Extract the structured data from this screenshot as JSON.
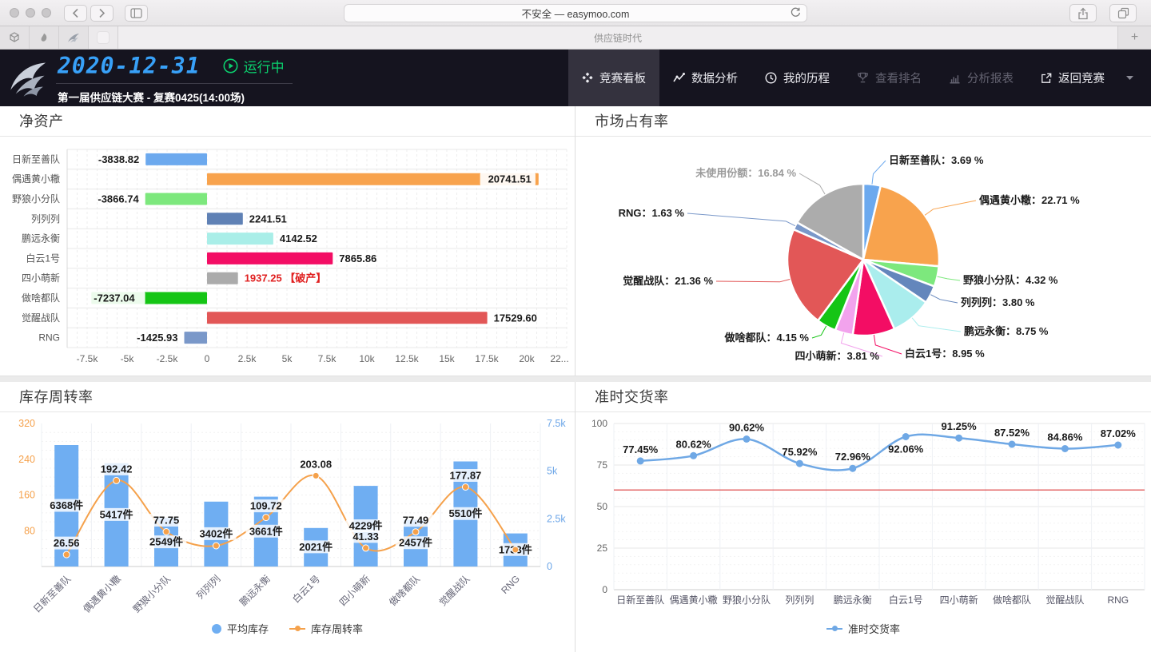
{
  "browser": {
    "url": "不安全 — easymoo.com",
    "tab_title": "供应链时代",
    "new_tab_label": "+"
  },
  "header": {
    "date": "2020-12-31",
    "status_label": "运行中",
    "match_title": "第一届供应链大赛 - 复赛0425(14:00场)",
    "nav_items": [
      {
        "label": "竞赛看板",
        "icon": "kanban-icon",
        "state": "active"
      },
      {
        "label": "数据分析",
        "icon": "analysis-icon",
        "state": "normal"
      },
      {
        "label": "我的历程",
        "icon": "history-icon",
        "state": "normal"
      },
      {
        "label": "查看排名",
        "icon": "ranking-icon",
        "state": "disabled"
      },
      {
        "label": "分析报表",
        "icon": "report-icon",
        "state": "disabled"
      },
      {
        "label": "返回竞赛",
        "icon": "external-link-icon",
        "state": "normal"
      }
    ]
  },
  "panels": {
    "net_assets": "净资产",
    "market_share": "市场占有率",
    "inventory_turnover": "库存周转率",
    "on_time_delivery": "准时交货率"
  },
  "chart_data": [
    {
      "id": "net_assets",
      "type": "bar",
      "title": "净资产",
      "orientation": "horizontal",
      "categories": [
        "日新至善队",
        "偶遇黄小糤",
        "野狼小分队",
        "列列列",
        "鹏远永衡",
        "白云1号",
        "四小萌新",
        "做啥都队",
        "觉醒战队",
        "RNG"
      ],
      "values": [
        -3838.82,
        20741.51,
        -3866.74,
        2241.51,
        4142.52,
        7865.86,
        1937.25,
        -7237.04,
        17529.6,
        -1425.93
      ],
      "value_labels": [
        "-3838.82",
        "20741.51",
        "-3866.74",
        "2241.51",
        "4142.52",
        "7865.86",
        "1937.25 【破产】",
        "-7237.04",
        "17529.60",
        "-1425.93"
      ],
      "bankrupt_index": 6,
      "bar_colors": [
        "#6CA9EE",
        "#F8A34D",
        "#7DE87D",
        "#5F81B5",
        "#A9EEE8",
        "#F30D64",
        "#ABABAB",
        "#15C515",
        "#E25757",
        "#7A98C9"
      ],
      "xlim": [
        -8750,
        22500
      ],
      "x_tick_values": [
        -7500,
        -5000,
        -2500,
        0,
        2500,
        5000,
        7500,
        10000,
        12500,
        15000,
        17500,
        20000,
        22500
      ],
      "x_tick_labels": [
        "-7.5k",
        "-5k",
        "-2.5k",
        "0",
        "2.5k",
        "5k",
        "7.5k",
        "10k",
        "12.5k",
        "15k",
        "17.5k",
        "20k",
        "22..."
      ]
    },
    {
      "id": "market_share",
      "type": "pie",
      "title": "市场占有率",
      "slices": [
        {
          "name": "日新至善队",
          "value": 3.69,
          "value_label": "3.69 %",
          "color": "#6CA9EE"
        },
        {
          "name": "偶遇黄小糤",
          "value": 22.71,
          "value_label": "22.71 %",
          "color": "#F8A34D"
        },
        {
          "name": "野狼小分队",
          "value": 4.32,
          "value_label": "4.32 %",
          "color": "#7DE87D"
        },
        {
          "name": "列列列",
          "value": 3.8,
          "value_label": "3.80 %",
          "color": "#6486BC"
        },
        {
          "name": "鹏远永衡",
          "value": 8.75,
          "value_label": "8.75 %",
          "color": "#AAEDED"
        },
        {
          "name": "白云1号",
          "value": 8.95,
          "value_label": "8.95 %",
          "color": "#F30D64"
        },
        {
          "name": "四小萌新",
          "value": 3.81,
          "value_label": "3.81 %",
          "color": "#F2A3ED"
        },
        {
          "name": "做啥都队",
          "value": 4.15,
          "value_label": "4.15 %",
          "color": "#15C515"
        },
        {
          "name": "觉醒战队",
          "value": 21.36,
          "value_label": "21.36 %",
          "color": "#E25757"
        },
        {
          "name": "RNG",
          "value": 1.63,
          "value_label": "1.63 %",
          "color": "#7A98C9"
        },
        {
          "name": "未使用份额",
          "value": 16.84,
          "value_label": "16.84 %",
          "color": "#ACACAC",
          "label_color": "#9b9b9b"
        }
      ],
      "start_angle_deg": 0,
      "direction": "clockwise"
    },
    {
      "id": "inventory_turnover",
      "type": "bar+line",
      "title": "库存周转率",
      "categories": [
        "日新至善队",
        "偶遇黄小糤",
        "野狼小分队",
        "列列列",
        "鹏远永衡",
        "白云1号",
        "四小萌新",
        "做啥都队",
        "觉醒战队",
        "RNG"
      ],
      "series": [
        {
          "name": "平均库存",
          "type": "bar",
          "axis": "right",
          "unit": "件",
          "color": "#6FAEF2",
          "values": [
            6368,
            5417,
            2549,
            3402,
            3661,
            2021,
            4229,
            2457,
            5510,
            1733
          ]
        },
        {
          "name": "库存周转率",
          "type": "line",
          "axis": "left",
          "color": "#F5A14B",
          "values": [
            26.56,
            192.42,
            77.75,
            46.5,
            109.72,
            203.08,
            41.33,
            77.49,
            177.87,
            37.5
          ],
          "point_labels": [
            "26.56",
            "192.42",
            "77.75",
            "",
            "109.72",
            "203.08",
            "41.33",
            "77.49",
            "177.87",
            ""
          ]
        }
      ],
      "left_axis": {
        "max": 320,
        "ticks": [
          "320",
          "240",
          "160",
          "80"
        ],
        "color": "#F5A14B"
      },
      "right_axis": {
        "max": 7500,
        "ticks": [
          "7.5k",
          "5k",
          "2.5k",
          "0"
        ],
        "color": "#6CA6E8"
      },
      "legend": [
        "平均库存",
        "库存周转率"
      ]
    },
    {
      "id": "on_time_delivery",
      "type": "line",
      "title": "准时交货率",
      "categories": [
        "日新至善队",
        "偶遇黄小糤",
        "野狼小分队",
        "列列列",
        "鹏远永衡",
        "白云1号",
        "四小萌新",
        "做啥都队",
        "觉醒战队",
        "RNG"
      ],
      "series": [
        {
          "name": "准时交货率",
          "color": "#6FA8E5",
          "values": [
            77.45,
            80.62,
            90.62,
            75.92,
            72.96,
            92.06,
            91.25,
            87.52,
            84.86,
            87.02
          ]
        }
      ],
      "value_suffix": "%",
      "ylim": [
        0,
        100
      ],
      "y_ticks": [
        "100",
        "75",
        "50",
        "25",
        "0"
      ],
      "threshold_line": {
        "value": 60,
        "color": "#DC3A3A"
      },
      "legend": [
        "准时交货率"
      ]
    }
  ]
}
